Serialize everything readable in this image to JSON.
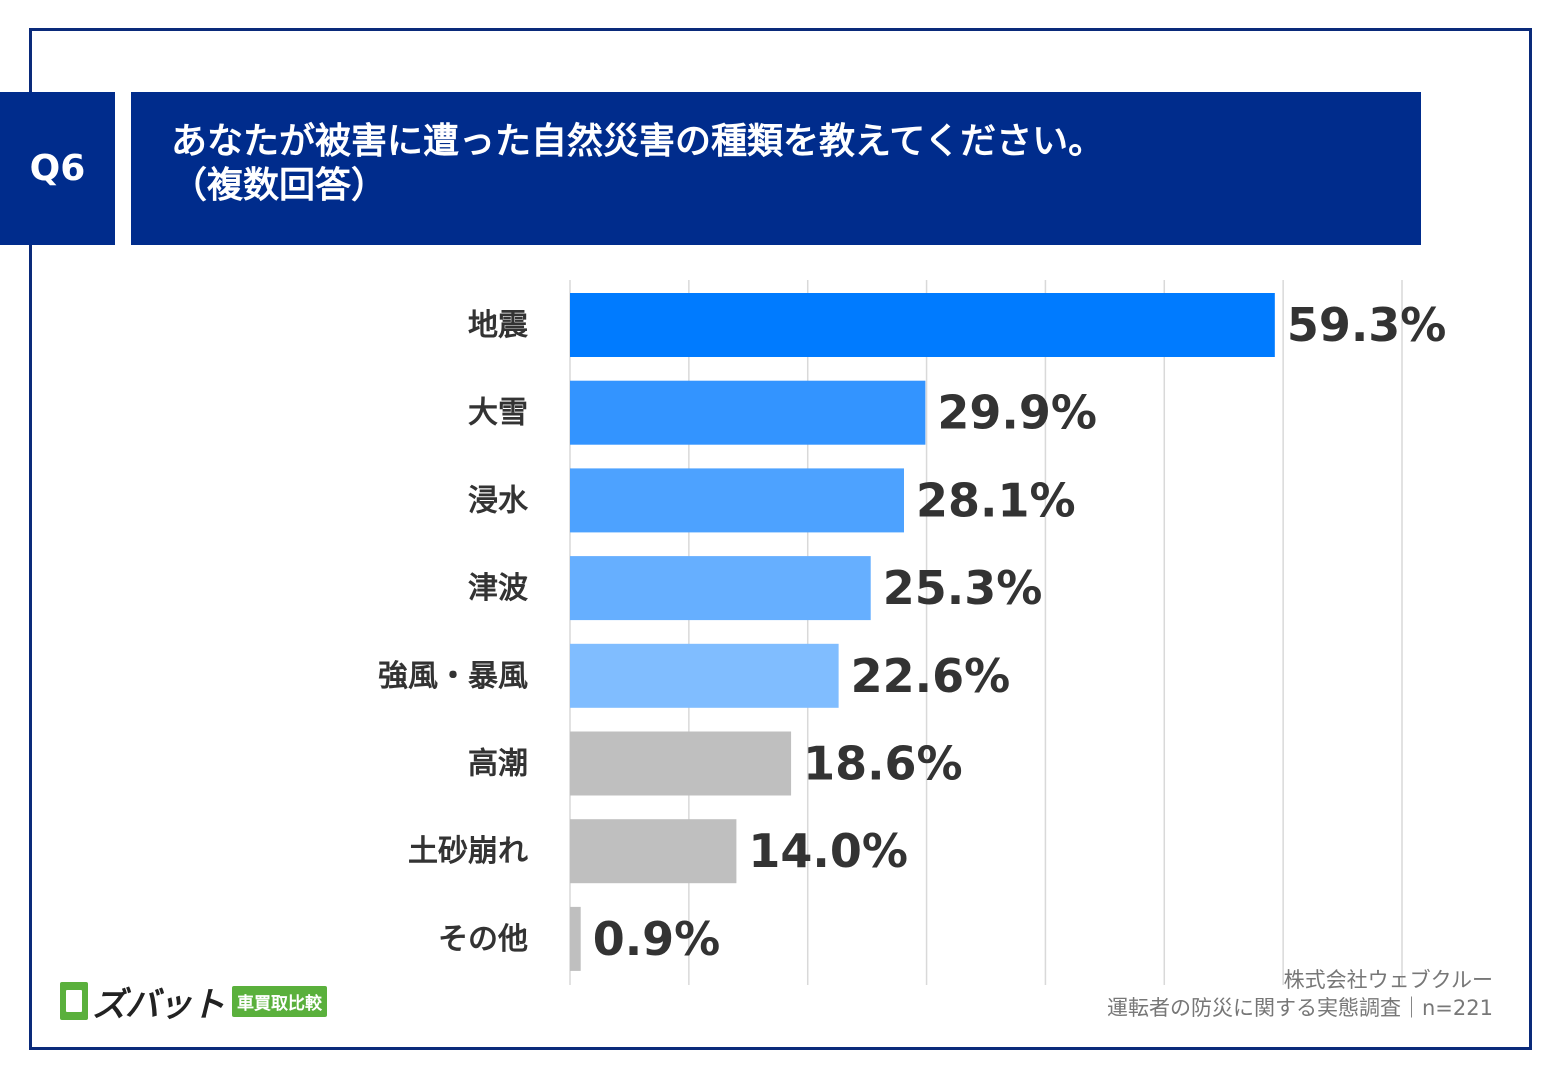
{
  "question": {
    "number": "Q6",
    "title_line1": "あなたが被害に遭った自然災害の種類を教えてください。",
    "title_line2": "（複数回答）"
  },
  "chart_data": {
    "type": "bar",
    "orientation": "horizontal",
    "categories": [
      "地震",
      "大雪",
      "浸水",
      "津波",
      "強風・暴風",
      "高潮",
      "土砂崩れ",
      "その他"
    ],
    "values": [
      59.3,
      29.9,
      28.1,
      25.3,
      22.6,
      18.6,
      14.0,
      0.9
    ],
    "value_labels": [
      "59.3%",
      "29.9%",
      "28.1%",
      "25.3%",
      "22.6%",
      "18.6%",
      "14.0%",
      "0.9%"
    ],
    "colors": [
      "#007bff",
      "#3394ff",
      "#4da2ff",
      "#66afff",
      "#80bdff",
      "#bfbfbf",
      "#bfbfbf",
      "#bfbfbf"
    ],
    "xlim": [
      0,
      70
    ],
    "grid": true,
    "gridline_color": "#d9d9d9"
  },
  "source": {
    "line1": "株式会社ウェブクルー",
    "line2": "運転者の防災に関する実態調査｜n=221"
  },
  "logo": {
    "name": "ズバット",
    "badge": "車買取比較",
    "brand_color": "#5ab03c"
  },
  "colors": {
    "header_bg": "#002c8c",
    "frame": "#0a2a7a"
  }
}
